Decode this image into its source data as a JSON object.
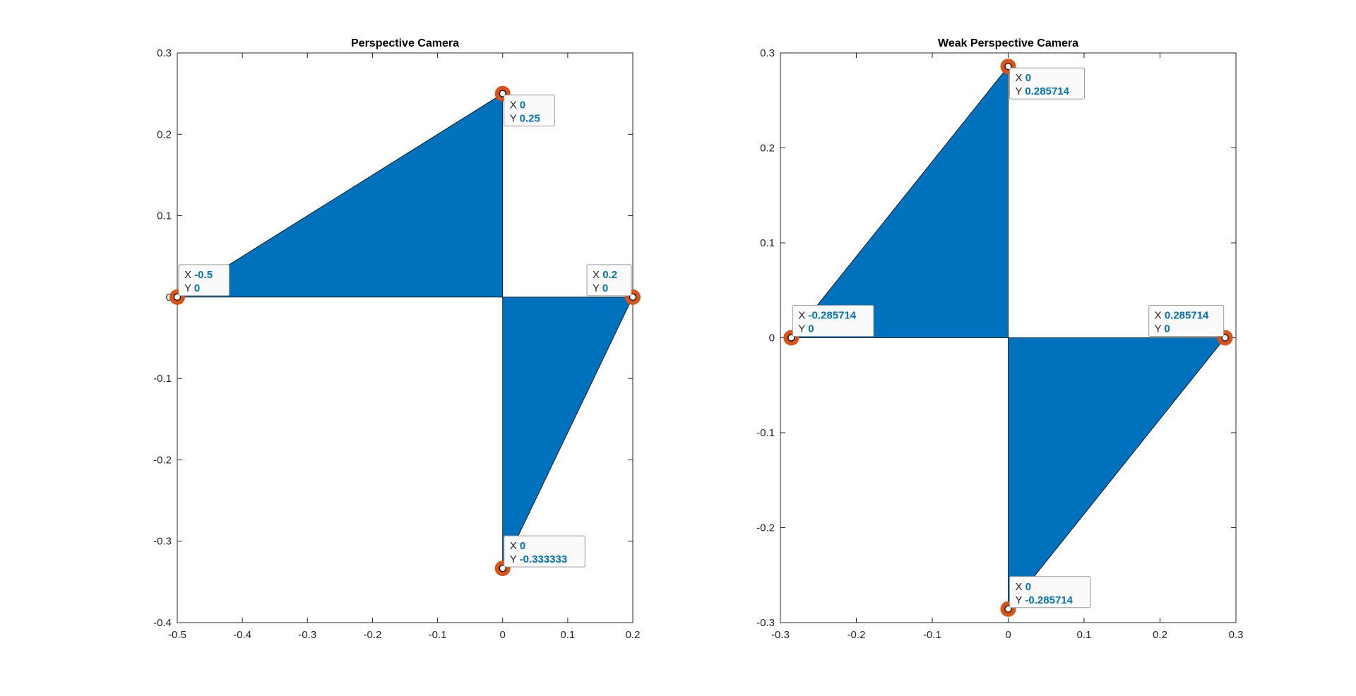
{
  "chart_data": [
    {
      "type": "area",
      "title": "Perspective Camera",
      "xlabel": "",
      "ylabel": "",
      "xlim": [
        -0.5,
        0.2
      ],
      "ylim": [
        -0.4,
        0.3
      ],
      "xticks": [
        -0.5,
        -0.4,
        -0.3,
        -0.2,
        -0.1,
        0,
        0.1,
        0.2
      ],
      "xtick_labels": [
        "-0.5",
        "-0.4",
        "-0.3",
        "-0.2",
        "-0.1",
        "0",
        "0.1",
        "0.2"
      ],
      "yticks": [
        -0.4,
        -0.3,
        -0.2,
        -0.1,
        0,
        0.1,
        0.2,
        0.3
      ],
      "ytick_labels": [
        "-0.4",
        "-0.3",
        "-0.2",
        "-0.1",
        "0",
        "0.1",
        "0.2",
        "0.3"
      ],
      "grid": false,
      "fill_color": "#0072BD",
      "marker_color": "#D95319",
      "datatip_value_color": "#0072BD",
      "polygons": [
        [
          [
            0,
            0
          ],
          [
            -0.5,
            0
          ],
          [
            0,
            0.25
          ]
        ],
        [
          [
            0,
            0
          ],
          [
            0.2,
            0
          ],
          [
            0,
            -0.333333
          ]
        ]
      ],
      "datatips": [
        {
          "x": 0,
          "y": 0.25,
          "xlabel": "X",
          "ylabel": "Y",
          "x_text": "0",
          "y_text": "0.25",
          "side": "right-below"
        },
        {
          "x": -0.5,
          "y": 0,
          "xlabel": "X",
          "ylabel": "Y",
          "x_text": "-0.5",
          "y_text": "0",
          "side": "right-above"
        },
        {
          "x": 0.2,
          "y": 0,
          "xlabel": "X",
          "ylabel": "Y",
          "x_text": "0.2",
          "y_text": "0",
          "side": "left-above"
        },
        {
          "x": 0,
          "y": -0.333333,
          "xlabel": "X",
          "ylabel": "Y",
          "x_text": "0",
          "y_text": "-0.333333",
          "side": "right-above"
        }
      ]
    },
    {
      "type": "area",
      "title": "Weak Perspective Camera",
      "xlabel": "",
      "ylabel": "",
      "xlim": [
        -0.3,
        0.3
      ],
      "ylim": [
        -0.3,
        0.3
      ],
      "xticks": [
        -0.3,
        -0.2,
        -0.1,
        0,
        0.1,
        0.2,
        0.3
      ],
      "xtick_labels": [
        "-0.3",
        "-0.2",
        "-0.1",
        "0",
        "0.1",
        "0.2",
        "0.3"
      ],
      "yticks": [
        -0.3,
        -0.2,
        -0.1,
        0,
        0.1,
        0.2,
        0.3
      ],
      "ytick_labels": [
        "-0.3",
        "-0.2",
        "-0.1",
        "0",
        "0.1",
        "0.2",
        "0.3"
      ],
      "grid": false,
      "fill_color": "#0072BD",
      "marker_color": "#D95319",
      "datatip_value_color": "#0072BD",
      "polygons": [
        [
          [
            0,
            0
          ],
          [
            -0.285714,
            0
          ],
          [
            0,
            0.285714
          ]
        ],
        [
          [
            0,
            0
          ],
          [
            0.285714,
            0
          ],
          [
            0,
            -0.285714
          ]
        ]
      ],
      "datatips": [
        {
          "x": 0,
          "y": 0.285714,
          "xlabel": "X",
          "ylabel": "Y",
          "x_text": "0",
          "y_text": "0.285714",
          "side": "right-below"
        },
        {
          "x": -0.285714,
          "y": 0,
          "xlabel": "X",
          "ylabel": "Y",
          "x_text": "-0.285714",
          "y_text": "0",
          "side": "right-above"
        },
        {
          "x": 0.285714,
          "y": 0,
          "xlabel": "X",
          "ylabel": "Y",
          "x_text": "0.285714",
          "y_text": "0",
          "side": "left-above"
        },
        {
          "x": 0,
          "y": -0.285714,
          "xlabel": "X",
          "ylabel": "Y",
          "x_text": "0",
          "y_text": "-0.285714",
          "side": "right-above"
        }
      ]
    }
  ]
}
